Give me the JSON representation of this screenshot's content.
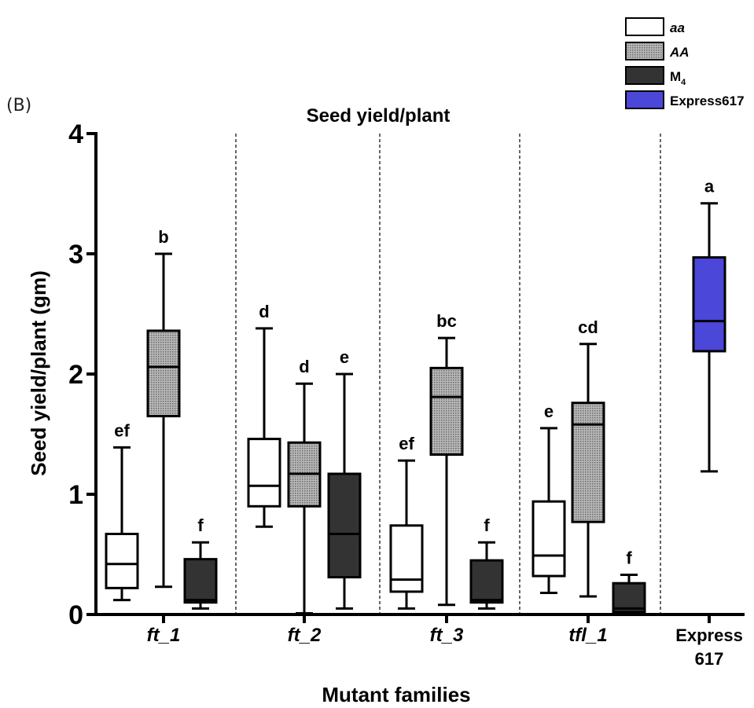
{
  "panel_label": "(B)",
  "legend": {
    "items": [
      {
        "label": "aa",
        "italic": true,
        "fill": "white"
      },
      {
        "label": "AA",
        "italic": true,
        "fill": "dotted"
      },
      {
        "label": "M",
        "sub": "4",
        "italic": false,
        "fill": "#333333"
      },
      {
        "label": "Express617",
        "italic": false,
        "fill": "#4b47d9"
      }
    ]
  },
  "colors": {
    "aa": "#ffffff",
    "AA": "#999999",
    "M4": "#333333",
    "Express617": "#4b47d9"
  },
  "chart_data": {
    "type": "box",
    "title": "Seed yield/plant",
    "xlabel": "Mutant families",
    "ylabel": "Seed yield/plant (gm)",
    "ylim": [
      0,
      4
    ],
    "yticks": [
      "0",
      "1",
      "2",
      "3",
      "4"
    ],
    "groups": [
      {
        "label": "ft_1",
        "italic": true,
        "boxes": [
          {
            "genotype": "aa",
            "min": 0.12,
            "q1": 0.22,
            "median": 0.42,
            "q3": 0.67,
            "max": 1.39,
            "sig": "ef"
          },
          {
            "genotype": "AA",
            "min": 0.23,
            "q1": 1.65,
            "median": 2.06,
            "q3": 2.36,
            "max": 3.0,
            "sig": "b"
          },
          {
            "genotype": "M4",
            "min": 0.05,
            "q1": 0.1,
            "median": 0.12,
            "q3": 0.46,
            "max": 0.6,
            "sig": "f"
          }
        ]
      },
      {
        "label": "ft_2",
        "italic": true,
        "boxes": [
          {
            "genotype": "aa",
            "min": 0.73,
            "q1": 0.9,
            "median": 1.07,
            "q3": 1.46,
            "max": 2.38,
            "sig": "d"
          },
          {
            "genotype": "AA",
            "min": 0.01,
            "q1": 0.9,
            "median": 1.17,
            "q3": 1.43,
            "max": 1.92,
            "sig": "d"
          },
          {
            "genotype": "M4",
            "min": 0.05,
            "q1": 0.31,
            "median": 0.67,
            "q3": 1.17,
            "max": 2.0,
            "sig": "e"
          }
        ]
      },
      {
        "label": "ft_3",
        "italic": true,
        "boxes": [
          {
            "genotype": "aa",
            "min": 0.05,
            "q1": 0.19,
            "median": 0.29,
            "q3": 0.74,
            "max": 1.28,
            "sig": "ef"
          },
          {
            "genotype": "AA",
            "min": 0.08,
            "q1": 1.33,
            "median": 1.81,
            "q3": 2.05,
            "max": 2.3,
            "sig": "bc"
          },
          {
            "genotype": "M4",
            "min": 0.05,
            "q1": 0.1,
            "median": 0.12,
            "q3": 0.45,
            "max": 0.6,
            "sig": "f"
          }
        ]
      },
      {
        "label": "tfl_1",
        "italic": true,
        "boxes": [
          {
            "genotype": "aa",
            "min": 0.18,
            "q1": 0.32,
            "median": 0.49,
            "q3": 0.94,
            "max": 1.55,
            "sig": "e"
          },
          {
            "genotype": "AA",
            "min": 0.15,
            "q1": 0.77,
            "median": 1.58,
            "q3": 1.76,
            "max": 2.25,
            "sig": "cd"
          },
          {
            "genotype": "M4",
            "min": 0.02,
            "q1": 0.02,
            "median": 0.05,
            "q3": 0.26,
            "max": 0.33,
            "sig": "f"
          }
        ]
      },
      {
        "label": "Express 617",
        "label_lines": [
          "Express",
          "617"
        ],
        "italic": false,
        "boxes": [
          {
            "genotype": "Express617",
            "min": 1.19,
            "q1": 2.19,
            "median": 2.44,
            "q3": 2.97,
            "max": 3.42,
            "sig": "a"
          }
        ]
      }
    ]
  }
}
